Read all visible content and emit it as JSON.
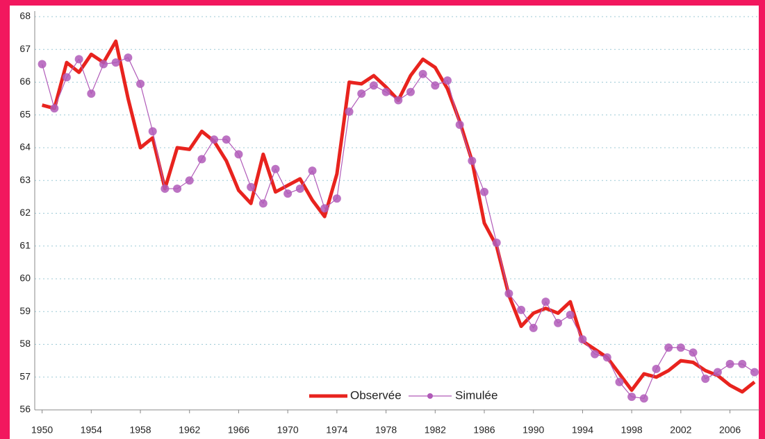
{
  "chart_data": {
    "type": "line",
    "x": [
      1950,
      1951,
      1952,
      1953,
      1954,
      1955,
      1956,
      1957,
      1958,
      1959,
      1960,
      1961,
      1962,
      1963,
      1964,
      1965,
      1966,
      1967,
      1968,
      1969,
      1970,
      1971,
      1972,
      1973,
      1974,
      1975,
      1976,
      1977,
      1978,
      1979,
      1980,
      1981,
      1982,
      1983,
      1984,
      1985,
      1986,
      1987,
      1988,
      1989,
      1990,
      1991,
      1992,
      1993,
      1994,
      1995,
      1996,
      1997,
      1998,
      1999,
      2000,
      2001,
      2002,
      2003,
      2004,
      2005,
      2006,
      2007,
      2008
    ],
    "series": [
      {
        "name": "Observée",
        "color": "#e8231e",
        "values": [
          65.3,
          65.2,
          66.6,
          66.3,
          66.85,
          66.6,
          67.25,
          65.5,
          64.0,
          64.3,
          62.75,
          64.0,
          63.95,
          64.5,
          64.2,
          63.6,
          62.7,
          62.3,
          63.8,
          62.65,
          62.85,
          63.05,
          62.4,
          61.9,
          63.2,
          66.0,
          65.95,
          66.2,
          65.85,
          65.45,
          66.2,
          66.7,
          66.45,
          65.8,
          64.8,
          63.6,
          61.7,
          61.0,
          59.5,
          58.55,
          58.95,
          59.1,
          58.95,
          59.3,
          58.1,
          57.85,
          57.6,
          57.1,
          56.6,
          57.1,
          57.0,
          57.2,
          57.5,
          57.45,
          57.2,
          57.05,
          56.75,
          56.55,
          56.85
        ]
      },
      {
        "name": "Simulée",
        "color": "#b05ab8",
        "values": [
          66.55,
          65.2,
          66.15,
          66.7,
          65.65,
          66.55,
          66.6,
          66.75,
          65.95,
          64.5,
          62.75,
          62.75,
          63.0,
          63.65,
          64.25,
          64.25,
          63.8,
          62.8,
          62.3,
          63.35,
          62.6,
          62.75,
          63.3,
          62.15,
          62.45,
          65.1,
          65.65,
          65.9,
          65.7,
          65.45,
          65.7,
          66.25,
          65.9,
          66.05,
          64.7,
          63.6,
          62.65,
          61.1,
          59.55,
          59.05,
          58.5,
          59.3,
          58.65,
          58.9,
          58.15,
          57.7,
          57.6,
          56.85,
          56.4,
          56.35,
          57.25,
          57.9,
          57.9,
          57.75,
          56.95,
          57.15,
          57.4,
          57.4,
          57.15
        ]
      }
    ],
    "xlim": [
      1949.4,
      2008.4
    ],
    "xticks": [
      1950,
      1954,
      1958,
      1962,
      1966,
      1970,
      1974,
      1978,
      1982,
      1986,
      1990,
      1994,
      1998,
      2002,
      2006
    ],
    "ylim": [
      56,
      68
    ],
    "yticks": [
      56,
      57,
      58,
      59,
      60,
      61,
      62,
      63,
      64,
      65,
      66,
      67,
      68
    ],
    "grid": true,
    "legend": "bottom"
  }
}
